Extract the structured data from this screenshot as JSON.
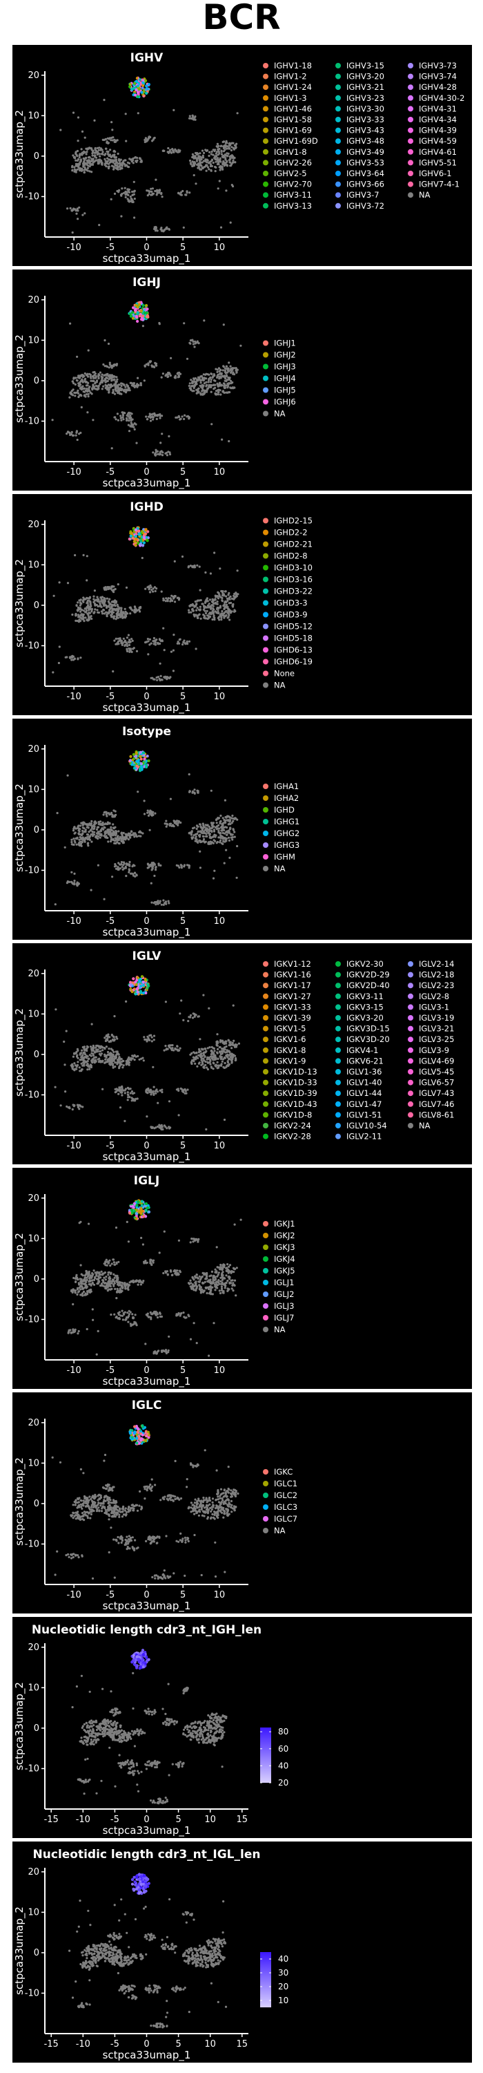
{
  "page": {
    "title": "BCR"
  },
  "colors": {
    "panel_bg": "#000000",
    "axis": "#ffffff",
    "cells_background": "#7f7f7f",
    "na_color": "#808080"
  },
  "chart_data": [
    {
      "type": "scatter",
      "title": "IGHV",
      "xlabel": "sctpca33umap_1",
      "ylabel": "sctpca33umap_2",
      "xticks": [
        "-10",
        "-5",
        "0",
        "5",
        "10"
      ],
      "yticks": [
        "20",
        "10",
        "0",
        "-10"
      ],
      "xlim": [
        -14,
        14
      ],
      "ylim": [
        -20,
        21
      ],
      "legend_type": "categorical",
      "legend_columns": 3,
      "legend": [
        {
          "label": "IGHV1-18",
          "color": "#F8766D"
        },
        {
          "label": "IGHV1-2",
          "color": "#F17E4F"
        },
        {
          "label": "IGHV1-24",
          "color": "#E88526"
        },
        {
          "label": "IGHV1-3",
          "color": "#DE8C00"
        },
        {
          "label": "IGHV1-46",
          "color": "#D39200"
        },
        {
          "label": "IGHV1-58",
          "color": "#C69900"
        },
        {
          "label": "IGHV1-69",
          "color": "#B79F00"
        },
        {
          "label": "IGHV1-69D",
          "color": "#A6A400"
        },
        {
          "label": "IGHV1-8",
          "color": "#93AA00"
        },
        {
          "label": "IGHV2-26",
          "color": "#7CAE00"
        },
        {
          "label": "IGHV2-5",
          "color": "#5EB300"
        },
        {
          "label": "IGHV2-70",
          "color": "#2BB700"
        },
        {
          "label": "IGHV3-11",
          "color": "#00BA38"
        },
        {
          "label": "IGHV3-13",
          "color": "#00BC59"
        },
        {
          "label": "IGHV3-15",
          "color": "#00BE71"
        },
        {
          "label": "IGHV3-20",
          "color": "#00C086"
        },
        {
          "label": "IGHV3-21",
          "color": "#00C19A"
        },
        {
          "label": "IGHV3-23",
          "color": "#00C1AC"
        },
        {
          "label": "IGHV3-30",
          "color": "#00C0BD"
        },
        {
          "label": "IGHV3-33",
          "color": "#00BECC"
        },
        {
          "label": "IGHV3-43",
          "color": "#00BBDA"
        },
        {
          "label": "IGHV3-48",
          "color": "#00B7E6"
        },
        {
          "label": "IGHV3-49",
          "color": "#00B0F0"
        },
        {
          "label": "IGHV3-53",
          "color": "#00A8F8"
        },
        {
          "label": "IGHV3-64",
          "color": "#009EFE"
        },
        {
          "label": "IGHV3-66",
          "color": "#3A92FF"
        },
        {
          "label": "IGHV3-7",
          "color": "#6A84FF"
        },
        {
          "label": "IGHV3-72",
          "color": "#8B93FF"
        },
        {
          "label": "IGHV3-73",
          "color": "#A58AFF"
        },
        {
          "label": "IGHV3-74",
          "color": "#B983FF"
        },
        {
          "label": "IGHV4-28",
          "color": "#CB7BFF"
        },
        {
          "label": "IGHV4-30-2",
          "color": "#D874FD"
        },
        {
          "label": "IGHV4-31",
          "color": "#E36EF6"
        },
        {
          "label": "IGHV4-34",
          "color": "#EC69EF"
        },
        {
          "label": "IGHV4-39",
          "color": "#F365E6"
        },
        {
          "label": "IGHV4-59",
          "color": "#F962DC"
        },
        {
          "label": "IGHV4-61",
          "color": "#FD61D1"
        },
        {
          "label": "IGHV5-51",
          "color": "#FF62C4"
        },
        {
          "label": "IGHV6-1",
          "color": "#FF64B6"
        },
        {
          "label": "IGHV7-4-1",
          "color": "#FF67A4"
        },
        {
          "label": "NA",
          "color": "#808080"
        }
      ]
    },
    {
      "type": "scatter",
      "title": "IGHJ",
      "xlabel": "sctpca33umap_1",
      "ylabel": "sctpca33umap_2",
      "xticks": [
        "-10",
        "-5",
        "0",
        "5",
        "10"
      ],
      "yticks": [
        "20",
        "10",
        "0",
        "-10"
      ],
      "xlim": [
        -14,
        14
      ],
      "ylim": [
        -20,
        21
      ],
      "legend_type": "categorical",
      "legend_columns": 1,
      "legend": [
        {
          "label": "IGHJ1",
          "color": "#F8766D"
        },
        {
          "label": "IGHJ2",
          "color": "#B79F00"
        },
        {
          "label": "IGHJ3",
          "color": "#00BA38"
        },
        {
          "label": "IGHJ4",
          "color": "#00BFC4"
        },
        {
          "label": "IGHJ5",
          "color": "#619CFF"
        },
        {
          "label": "IGHJ6",
          "color": "#F564E3"
        },
        {
          "label": "NA",
          "color": "#808080"
        }
      ]
    },
    {
      "type": "scatter",
      "title": "IGHD",
      "xlabel": "sctpca33umap_1",
      "ylabel": "sctpca33umap_2",
      "xticks": [
        "-10",
        "-5",
        "0",
        "5",
        "10"
      ],
      "yticks": [
        "20",
        "10",
        "0",
        "-10"
      ],
      "xlim": [
        -14,
        14
      ],
      "ylim": [
        -20,
        21
      ],
      "legend_type": "categorical",
      "legend_columns": 1,
      "legend": [
        {
          "label": "IGHD2-15",
          "color": "#F8766D"
        },
        {
          "label": "IGHD2-2",
          "color": "#E18A00"
        },
        {
          "label": "IGHD2-21",
          "color": "#BE9C00"
        },
        {
          "label": "IGHD2-8",
          "color": "#8CAB00"
        },
        {
          "label": "IGHD3-10",
          "color": "#24B700"
        },
        {
          "label": "IGHD3-16",
          "color": "#00BE70"
        },
        {
          "label": "IGHD3-22",
          "color": "#00C1AB"
        },
        {
          "label": "IGHD3-3",
          "color": "#00BBDA"
        },
        {
          "label": "IGHD3-9",
          "color": "#00ACFC"
        },
        {
          "label": "IGHD5-12",
          "color": "#8B93FF"
        },
        {
          "label": "IGHD5-18",
          "color": "#D575FE"
        },
        {
          "label": "IGHD6-13",
          "color": "#F962DD"
        },
        {
          "label": "IGHD6-19",
          "color": "#FF65AC"
        },
        {
          "label": "None",
          "color": "#FF6C91"
        },
        {
          "label": "NA",
          "color": "#808080"
        }
      ]
    },
    {
      "type": "scatter",
      "title": "Isotype",
      "xlabel": "sctpca33umap_1",
      "ylabel": "sctpca33umap_2",
      "xticks": [
        "-10",
        "-5",
        "0",
        "5",
        "10"
      ],
      "yticks": [
        "20",
        "10",
        "0",
        "-10"
      ],
      "xlim": [
        -14,
        14
      ],
      "ylim": [
        -20,
        21
      ],
      "legend_type": "categorical",
      "legend_columns": 1,
      "legend": [
        {
          "label": "IGHA1",
          "color": "#F8766D"
        },
        {
          "label": "IGHA2",
          "color": "#C49A00"
        },
        {
          "label": "IGHD",
          "color": "#53B400"
        },
        {
          "label": "IGHG1",
          "color": "#00C094"
        },
        {
          "label": "IGHG2",
          "color": "#00B6EB"
        },
        {
          "label": "IGHG3",
          "color": "#A58AFF"
        },
        {
          "label": "IGHM",
          "color": "#FB61D7"
        },
        {
          "label": "NA",
          "color": "#808080"
        }
      ]
    },
    {
      "type": "scatter",
      "title": "IGLV",
      "xlabel": "sctpca33umap_1",
      "ylabel": "sctpca33umap_2",
      "xticks": [
        "-10",
        "-5",
        "0",
        "5",
        "10"
      ],
      "yticks": [
        "20",
        "10",
        "0",
        "-10"
      ],
      "xlim": [
        -14,
        14
      ],
      "ylim": [
        -20,
        21
      ],
      "legend_type": "categorical",
      "legend_columns": 3,
      "legend": [
        {
          "label": "IGKV1-12",
          "color": "#F8766D"
        },
        {
          "label": "IGKV1-16",
          "color": "#F37B59"
        },
        {
          "label": "IGKV1-17",
          "color": "#ED8141"
        },
        {
          "label": "IGKV1-27",
          "color": "#E7861B"
        },
        {
          "label": "IGKV1-33",
          "color": "#E08B00"
        },
        {
          "label": "IGKV1-39",
          "color": "#D89000"
        },
        {
          "label": "IGKV1-5",
          "color": "#CF9400"
        },
        {
          "label": "IGKV1-6",
          "color": "#C59900"
        },
        {
          "label": "IGKV1-8",
          "color": "#BB9D00"
        },
        {
          "label": "IGKV1-9",
          "color": "#AFA100"
        },
        {
          "label": "IGKV1D-13",
          "color": "#A3A500"
        },
        {
          "label": "IGKV1D-33",
          "color": "#95A900"
        },
        {
          "label": "IGKV1D-39",
          "color": "#86AC00"
        },
        {
          "label": "IGKV1D-43",
          "color": "#75AF00"
        },
        {
          "label": "IGKV1D-8",
          "color": "#5FB200"
        },
        {
          "label": "IGKV2-24",
          "color": "#42B540"
        },
        {
          "label": "IGKV2-28",
          "color": "#00B81F"
        },
        {
          "label": "IGKV2-30",
          "color": "#00BA42"
        },
        {
          "label": "IGKV2D-29",
          "color": "#00BC59"
        },
        {
          "label": "IGKV2D-40",
          "color": "#00BD6C"
        },
        {
          "label": "IGKV3-11",
          "color": "#00BF7D"
        },
        {
          "label": "IGKV3-15",
          "color": "#00C08D"
        },
        {
          "label": "IGKV3-20",
          "color": "#00C09C"
        },
        {
          "label": "IGKV3D-15",
          "color": "#00C1AA"
        },
        {
          "label": "IGKV3D-20",
          "color": "#00C0B8"
        },
        {
          "label": "IGKV4-1",
          "color": "#00C0C5"
        },
        {
          "label": "IGKV6-21",
          "color": "#00BED1"
        },
        {
          "label": "IGLV1-36",
          "color": "#00BCDD"
        },
        {
          "label": "IGLV1-40",
          "color": "#00B9E7"
        },
        {
          "label": "IGLV1-44",
          "color": "#00B5F1"
        },
        {
          "label": "IGLV1-47",
          "color": "#00B0F9"
        },
        {
          "label": "IGLV1-51",
          "color": "#00ABFD"
        },
        {
          "label": "IGLV10-54",
          "color": "#23A4FF"
        },
        {
          "label": "IGLV2-11",
          "color": "#619CFF"
        },
        {
          "label": "IGLV2-14",
          "color": "#8194FF"
        },
        {
          "label": "IGLV2-18",
          "color": "#998CFF"
        },
        {
          "label": "IGLV2-23",
          "color": "#AD86FF"
        },
        {
          "label": "IGLV2-8",
          "color": "#BE80FF"
        },
        {
          "label": "IGLV3-1",
          "color": "#CC7AFF"
        },
        {
          "label": "IGLV3-19",
          "color": "#D874FD"
        },
        {
          "label": "IGLV3-21",
          "color": "#E270F8"
        },
        {
          "label": "IGLV3-25",
          "color": "#EA6BF2"
        },
        {
          "label": "IGLV3-9",
          "color": "#F168EA"
        },
        {
          "label": "IGLV4-69",
          "color": "#F765E1"
        },
        {
          "label": "IGLV5-45",
          "color": "#FB62D7"
        },
        {
          "label": "IGLV6-57",
          "color": "#FE61CB"
        },
        {
          "label": "IGLV7-43",
          "color": "#FF62BF"
        },
        {
          "label": "IGLV7-46",
          "color": "#FF64B1"
        },
        {
          "label": "IGLV8-61",
          "color": "#FF67A3"
        },
        {
          "label": "NA",
          "color": "#808080"
        }
      ]
    },
    {
      "type": "scatter",
      "title": "IGLJ",
      "xlabel": "sctpca33umap_1",
      "ylabel": "sctpca33umap_2",
      "xticks": [
        "-10",
        "-5",
        "0",
        "5",
        "10"
      ],
      "yticks": [
        "20",
        "10",
        "0",
        "-10"
      ],
      "xlim": [
        -14,
        14
      ],
      "ylim": [
        -20,
        21
      ],
      "legend_type": "categorical",
      "legend_columns": 1,
      "legend": [
        {
          "label": "IGKJ1",
          "color": "#F8766D"
        },
        {
          "label": "IGKJ2",
          "color": "#D39200"
        },
        {
          "label": "IGKJ3",
          "color": "#93AA00"
        },
        {
          "label": "IGKJ4",
          "color": "#00BA38"
        },
        {
          "label": "IGKJ5",
          "color": "#00C19F"
        },
        {
          "label": "IGLJ1",
          "color": "#00B9E3"
        },
        {
          "label": "IGLJ2",
          "color": "#619CFF"
        },
        {
          "label": "IGLJ3",
          "color": "#DB72FB"
        },
        {
          "label": "IGLJ7",
          "color": "#FF61C3"
        },
        {
          "label": "NA",
          "color": "#808080"
        }
      ]
    },
    {
      "type": "scatter",
      "title": "IGLC",
      "xlabel": "sctpca33umap_1",
      "ylabel": "sctpca33umap_2",
      "xticks": [
        "-10",
        "-5",
        "0",
        "5",
        "10"
      ],
      "yticks": [
        "20",
        "10",
        "0",
        "-10"
      ],
      "xlim": [
        -14,
        14
      ],
      "ylim": [
        -20,
        21
      ],
      "legend_type": "categorical",
      "legend_columns": 1,
      "legend": [
        {
          "label": "IGKC",
          "color": "#F8766D"
        },
        {
          "label": "IGLC1",
          "color": "#A3A500"
        },
        {
          "label": "IGLC2",
          "color": "#00BF7D"
        },
        {
          "label": "IGLC3",
          "color": "#00B0F6"
        },
        {
          "label": "IGLC7",
          "color": "#E76BF3"
        },
        {
          "label": "NA",
          "color": "#808080"
        }
      ]
    },
    {
      "type": "scatter",
      "title": "Nucleotidic length cdr3_nt_IGH_len",
      "xlabel": "sctpca33umap_1",
      "ylabel": "sctpca33umap_2",
      "xticks": [
        "-15",
        "-10",
        "-5",
        "0",
        "5",
        "10",
        "15"
      ],
      "yticks": [
        "20",
        "10",
        "0",
        "-10"
      ],
      "xlim": [
        -16,
        16
      ],
      "ylim": [
        -20,
        21
      ],
      "legend_type": "gradient",
      "gradient": {
        "min": 20,
        "max": 85,
        "ticks": [
          "80",
          "60",
          "40",
          "20"
        ],
        "tick_values": [
          80,
          60,
          40,
          20
        ],
        "color_low": "#d9d0ff",
        "color_high": "#3b17ff"
      }
    },
    {
      "type": "scatter",
      "title": "Nucleotidic length cdr3_nt_IGL_len",
      "xlabel": "sctpca33umap_1",
      "ylabel": "sctpca33umap_2",
      "xticks": [
        "-15",
        "-10",
        "-5",
        "0",
        "5",
        "10",
        "15"
      ],
      "yticks": [
        "20",
        "10",
        "0",
        "-10"
      ],
      "xlim": [
        -16,
        16
      ],
      "ylim": [
        -20,
        21
      ],
      "legend_type": "gradient",
      "gradient": {
        "min": 5,
        "max": 45,
        "ticks": [
          "40",
          "30",
          "20",
          "10"
        ],
        "tick_values": [
          40,
          30,
          20,
          10
        ],
        "color_low": "#d9d0ff",
        "color_high": "#3b17ff"
      }
    }
  ]
}
